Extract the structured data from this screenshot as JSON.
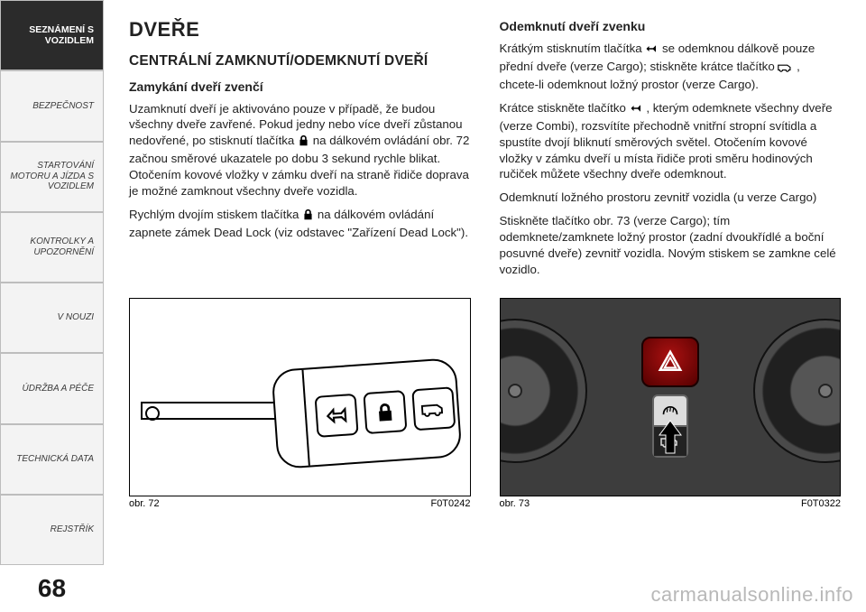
{
  "sidebar": {
    "items": [
      {
        "label": "SEZNÁMENÍ S\nVOZIDLEM",
        "active": true
      },
      {
        "label": "BEZPEČNOST",
        "active": false
      },
      {
        "label": "STARTOVÁNÍ\nMOTORU A JÍZDA S\nVOZIDLEM",
        "active": false
      },
      {
        "label": "KONTROLKY A\nUPOZORNĚNÍ",
        "active": false
      },
      {
        "label": "V NOUZI",
        "active": false
      },
      {
        "label": "ÚDRŽBA A PÉČE",
        "active": false
      },
      {
        "label": "TECHNICKÁ DATA",
        "active": false
      },
      {
        "label": "REJSTŘÍK",
        "active": false
      }
    ],
    "page_number": "68"
  },
  "left": {
    "h1": "DVEŘE",
    "h2": "CENTRÁLNÍ ZAMKNUTÍ/ODEMKNUTÍ DVEŘÍ",
    "h3": "Zamykání dveří zvenčí",
    "p1a": "Uzamknutí dveří je aktivováno pouze v případě, že budou všechny dveře zavřené. Pokud jedny nebo více dveří zůstanou nedovřené, po stisknutí tlačítka ",
    "p1b": " na dálkovém ovládání obr. 72 začnou směrové ukazatele po dobu 3 sekund rychle blikat. Otočením kovové vložky v zámku dveří na straně řidiče doprava je možné zamknout všechny dveře vozidla.",
    "p2a": "Rychlým dvojím stiskem tlačítka ",
    "p2b": " na dálkovém ovládání zapnete zámek Dead Lock (viz odstavec \"Zařízení Dead Lock\")."
  },
  "right": {
    "h3": "Odemknutí dveří zvenku",
    "p1a": "Krátkým stisknutím tlačítka ",
    "p1b": " se odemknou dálkově pouze přední dveře (verze Cargo); stiskněte krátce tlačítko ",
    "p1c": " , chcete-li odemknout ložný prostor (verze Cargo).",
    "p2a": "Krátce stiskněte tlačítko ",
    "p2b": " , kterým odemknete všechny dveře (verze Combi), rozsvítíte přechodně vnitřní stropní svítidla a spustíte dvojí bliknutí směrových světel. Otočením kovové vložky v zámku dveří u místa řidiče proti směru hodinových ručiček můžete všechny dveře odemknout.",
    "p3": "Odemknutí ložného prostoru zevnitř vozidla (u verze Cargo)",
    "p4": "Stiskněte tlačítko obr. 73 (verze Cargo); tím odemknete/zamknete ložný prostor (zadní dvoukřídlé a boční posuvné dveře) zevnitř vozidla. Novým stiskem se zamkne celé vozidlo."
  },
  "figs": {
    "left": {
      "caption": "obr. 72",
      "code": "F0T0242"
    },
    "right": {
      "caption": "obr. 73",
      "code": "F0T0322"
    }
  },
  "icons": {
    "lock_color": "#000",
    "unlock_color": "#000",
    "cargo_color": "#000"
  },
  "watermark": "carmanualsonline.info"
}
